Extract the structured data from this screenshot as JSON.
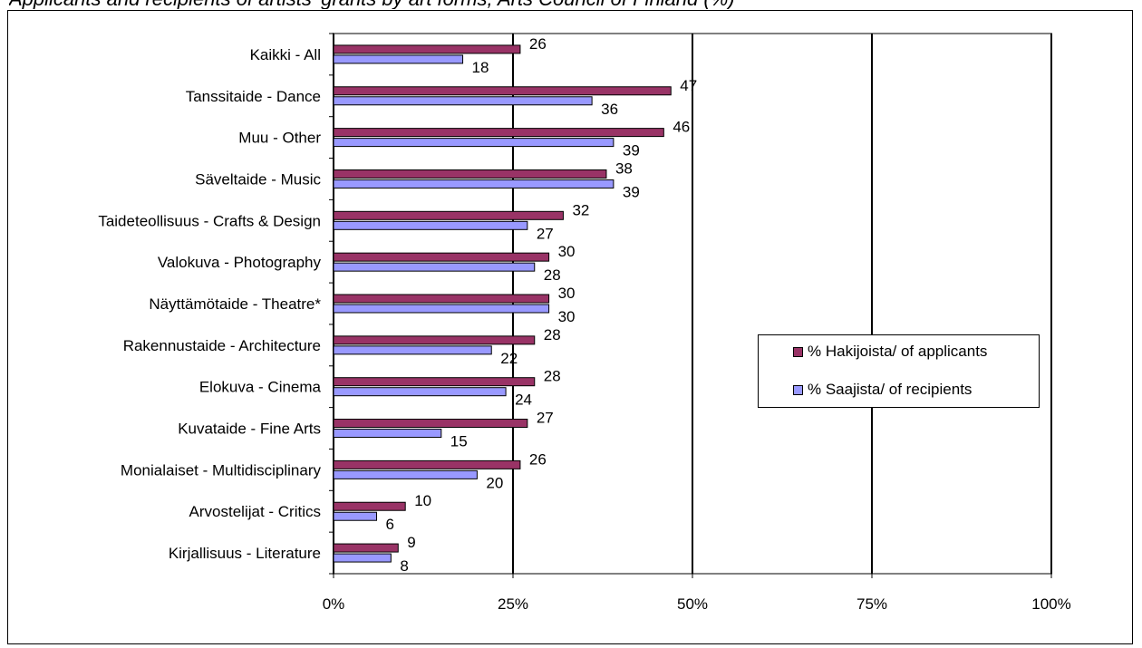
{
  "header": {
    "partial_title": "    Applicants and recipients of artists' grants by art forms, Arts Council of Finland (%)"
  },
  "chart_data": {
    "type": "bar",
    "orientation": "horizontal",
    "categories": [
      "Kaikki - All",
      "Tanssitaide - Dance",
      "Muu - Other",
      "Säveltaide - Music",
      "Taideteollisuus - Crafts & Design",
      "Valokuva - Photography",
      "Näyttämötaide - Theatre*",
      "Rakennustaide - Architecture",
      "Elokuva - Cinema",
      "Kuvataide - Fine Arts",
      "Monialaiset - Multidisciplinary",
      "Arvostelijat - Critics",
      "Kirjallisuus - Literature"
    ],
    "series": [
      {
        "name": "% Hakijoista/ of applicants",
        "color": "#993366",
        "values": [
          26,
          47,
          46,
          38,
          32,
          30,
          30,
          28,
          28,
          27,
          26,
          10,
          9
        ]
      },
      {
        "name": "% Saajista/ of recipients",
        "color": "#9999ff",
        "values": [
          18,
          36,
          39,
          39,
          27,
          28,
          30,
          22,
          24,
          15,
          20,
          6,
          8
        ]
      }
    ],
    "x_ticks": [
      "0%",
      "25%",
      "50%",
      "75%",
      "100%"
    ],
    "xlim": [
      0,
      100
    ],
    "grid": "vertical major gridlines",
    "legend_position": "right-middle"
  }
}
